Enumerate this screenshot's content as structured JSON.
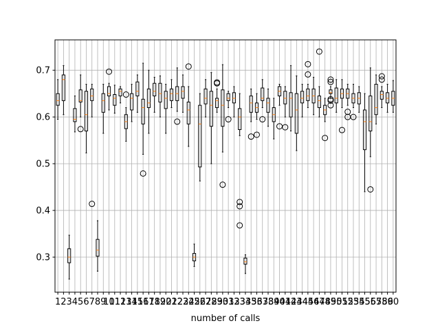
{
  "chart_data": {
    "type": "boxplot",
    "xlabel": "number of calls",
    "ylabel": "",
    "title": "",
    "ylim": [
      0.225,
      0.765
    ],
    "yticks": [
      0.3,
      0.4,
      0.5,
      0.6,
      0.7
    ],
    "ytick_labels": [
      "0.3",
      "0.4",
      "0.5",
      "0.6",
      "0.7"
    ],
    "grid": true,
    "colors": {
      "box": "#000000",
      "median": "#ff7f0e",
      "grid": "#b0b0b0",
      "background": "#ffffff"
    },
    "boxes": [
      {
        "x": 1,
        "q1": 0.625,
        "med": 0.635,
        "q3": 0.65,
        "wlo": 0.595,
        "whi": 0.68,
        "fliers": []
      },
      {
        "x": 2,
        "q1": 0.635,
        "med": 0.68,
        "q3": 0.69,
        "wlo": 0.605,
        "whi": 0.71,
        "fliers": []
      },
      {
        "x": 3,
        "q1": 0.288,
        "med": 0.3,
        "q3": 0.318,
        "wlo": 0.253,
        "whi": 0.347,
        "fliers": []
      },
      {
        "x": 4,
        "q1": 0.59,
        "med": 0.595,
        "q3": 0.618,
        "wlo": 0.568,
        "whi": 0.645,
        "fliers": []
      },
      {
        "x": 5,
        "q1": 0.632,
        "med": 0.635,
        "q3": 0.658,
        "wlo": 0.6,
        "whi": 0.69,
        "fliers": [
          0.574
        ]
      },
      {
        "x": 6,
        "q1": 0.57,
        "med": 0.605,
        "q3": 0.655,
        "wlo": 0.523,
        "whi": 0.67,
        "fliers": []
      },
      {
        "x": 7,
        "q1": 0.635,
        "med": 0.645,
        "q3": 0.66,
        "wlo": 0.6,
        "whi": 0.67,
        "fliers": [
          0.414
        ]
      },
      {
        "x": 8,
        "q1": 0.302,
        "med": 0.315,
        "q3": 0.338,
        "wlo": 0.27,
        "whi": 0.378,
        "fliers": []
      },
      {
        "x": 9,
        "q1": 0.61,
        "med": 0.635,
        "q3": 0.65,
        "wlo": 0.565,
        "whi": 0.67,
        "fliers": []
      },
      {
        "x": 10,
        "q1": 0.645,
        "med": 0.65,
        "q3": 0.665,
        "wlo": 0.615,
        "whi": 0.672,
        "fliers": [
          0.697
        ]
      },
      {
        "x": 11,
        "q1": 0.625,
        "med": 0.64,
        "q3": 0.648,
        "wlo": 0.608,
        "whi": 0.668,
        "fliers": []
      },
      {
        "x": 12,
        "q1": 0.645,
        "med": 0.655,
        "q3": 0.66,
        "wlo": 0.63,
        "whi": 0.665,
        "fliers": []
      },
      {
        "x": 13,
        "q1": 0.575,
        "med": 0.59,
        "q3": 0.605,
        "wlo": 0.548,
        "whi": 0.62,
        "fliers": [
          0.648
        ]
      },
      {
        "x": 14,
        "q1": 0.615,
        "med": 0.64,
        "q3": 0.65,
        "wlo": 0.59,
        "whi": 0.67,
        "fliers": []
      },
      {
        "x": 15,
        "q1": 0.645,
        "med": 0.655,
        "q3": 0.675,
        "wlo": 0.61,
        "whi": 0.69,
        "fliers": []
      },
      {
        "x": 16,
        "q1": 0.585,
        "med": 0.62,
        "q3": 0.638,
        "wlo": 0.52,
        "whi": 0.715,
        "fliers": [
          0.479
        ]
      },
      {
        "x": 17,
        "q1": 0.62,
        "med": 0.63,
        "q3": 0.66,
        "wlo": 0.565,
        "whi": 0.7,
        "fliers": []
      },
      {
        "x": 18,
        "q1": 0.645,
        "med": 0.655,
        "q3": 0.672,
        "wlo": 0.61,
        "whi": 0.685,
        "fliers": []
      },
      {
        "x": 19,
        "q1": 0.632,
        "med": 0.65,
        "q3": 0.672,
        "wlo": 0.6,
        "whi": 0.688,
        "fliers": []
      },
      {
        "x": 20,
        "q1": 0.618,
        "med": 0.64,
        "q3": 0.655,
        "wlo": 0.565,
        "whi": 0.67,
        "fliers": []
      },
      {
        "x": 21,
        "q1": 0.635,
        "med": 0.65,
        "q3": 0.66,
        "wlo": 0.62,
        "whi": 0.68,
        "fliers": []
      },
      {
        "x": 22,
        "q1": 0.635,
        "med": 0.65,
        "q3": 0.665,
        "wlo": 0.612,
        "whi": 0.705,
        "fliers": [
          0.59
        ]
      },
      {
        "x": 23,
        "q1": 0.64,
        "med": 0.655,
        "q3": 0.665,
        "wlo": 0.61,
        "whi": 0.69,
        "fliers": []
      },
      {
        "x": 24,
        "q1": 0.585,
        "med": 0.615,
        "q3": 0.632,
        "wlo": 0.537,
        "whi": 0.665,
        "fliers": [
          0.708
        ]
      },
      {
        "x": 25,
        "q1": 0.292,
        "med": 0.3,
        "q3": 0.308,
        "wlo": 0.28,
        "whi": 0.328,
        "fliers": []
      },
      {
        "x": 26,
        "q1": 0.493,
        "med": 0.585,
        "q3": 0.625,
        "wlo": 0.463,
        "whi": 0.65,
        "fliers": []
      },
      {
        "x": 27,
        "q1": 0.628,
        "med": 0.64,
        "q3": 0.66,
        "wlo": 0.6,
        "whi": 0.68,
        "fliers": []
      },
      {
        "x": 28,
        "q1": 0.58,
        "med": 0.625,
        "q3": 0.655,
        "wlo": 0.5,
        "whi": 0.695,
        "fliers": []
      },
      {
        "x": 29,
        "q1": 0.62,
        "med": 0.635,
        "q3": 0.64,
        "wlo": 0.61,
        "whi": 0.66,
        "fliers": [
          0.672,
          0.674
        ]
      },
      {
        "x": 30,
        "q1": 0.58,
        "med": 0.625,
        "q3": 0.658,
        "wlo": 0.525,
        "whi": 0.712,
        "fliers": [
          0.455
        ]
      },
      {
        "x": 31,
        "q1": 0.635,
        "med": 0.64,
        "q3": 0.65,
        "wlo": 0.62,
        "whi": 0.655,
        "fliers": [
          0.595
        ]
      },
      {
        "x": 32,
        "q1": 0.63,
        "med": 0.64,
        "q3": 0.652,
        "wlo": 0.6,
        "whi": 0.665,
        "fliers": []
      },
      {
        "x": 33,
        "q1": 0.573,
        "med": 0.6,
        "q3": 0.618,
        "wlo": 0.56,
        "whi": 0.65,
        "fliers": [
          0.418,
          0.409,
          0.368
        ]
      },
      {
        "x": 34,
        "q1": 0.285,
        "med": 0.29,
        "q3": 0.298,
        "wlo": 0.265,
        "whi": 0.305,
        "fliers": []
      },
      {
        "x": 35,
        "q1": 0.61,
        "med": 0.63,
        "q3": 0.645,
        "wlo": 0.59,
        "whi": 0.66,
        "fliers": [
          0.558
        ]
      },
      {
        "x": 36,
        "q1": 0.61,
        "med": 0.62,
        "q3": 0.63,
        "wlo": 0.595,
        "whi": 0.65,
        "fliers": [
          0.562
        ]
      },
      {
        "x": 37,
        "q1": 0.635,
        "med": 0.64,
        "q3": 0.662,
        "wlo": 0.62,
        "whi": 0.68,
        "fliers": [
          0.595
        ]
      },
      {
        "x": 38,
        "q1": 0.61,
        "med": 0.63,
        "q3": 0.64,
        "wlo": 0.58,
        "whi": 0.66,
        "fliers": []
      },
      {
        "x": 39,
        "q1": 0.59,
        "med": 0.605,
        "q3": 0.62,
        "wlo": 0.553,
        "whi": 0.64,
        "fliers": []
      },
      {
        "x": 40,
        "q1": 0.645,
        "med": 0.655,
        "q3": 0.665,
        "wlo": 0.625,
        "whi": 0.67,
        "fliers": [
          0.58
        ]
      },
      {
        "x": 41,
        "q1": 0.628,
        "med": 0.64,
        "q3": 0.655,
        "wlo": 0.6,
        "whi": 0.665,
        "fliers": [
          0.578
        ]
      },
      {
        "x": 42,
        "q1": 0.6,
        "med": 0.64,
        "q3": 0.652,
        "wlo": 0.57,
        "whi": 0.71,
        "fliers": []
      },
      {
        "x": 43,
        "q1": 0.565,
        "med": 0.615,
        "q3": 0.65,
        "wlo": 0.528,
        "whi": 0.688,
        "fliers": []
      },
      {
        "x": 44,
        "q1": 0.63,
        "med": 0.64,
        "q3": 0.655,
        "wlo": 0.6,
        "whi": 0.67,
        "fliers": []
      },
      {
        "x": 45,
        "q1": 0.635,
        "med": 0.645,
        "q3": 0.66,
        "wlo": 0.62,
        "whi": 0.67,
        "fliers": [
          0.713,
          0.691
        ]
      },
      {
        "x": 46,
        "q1": 0.63,
        "med": 0.645,
        "q3": 0.66,
        "wlo": 0.605,
        "whi": 0.685,
        "fliers": []
      },
      {
        "x": 47,
        "q1": 0.62,
        "med": 0.635,
        "q3": 0.645,
        "wlo": 0.6,
        "whi": 0.665,
        "fliers": [
          0.74
        ]
      },
      {
        "x": 48,
        "q1": 0.605,
        "med": 0.615,
        "q3": 0.625,
        "wlo": 0.59,
        "whi": 0.64,
        "fliers": [
          0.555
        ]
      },
      {
        "x": 49,
        "q1": 0.65,
        "med": 0.652,
        "q3": 0.658,
        "wlo": 0.64,
        "whi": 0.665,
        "fliers": [
          0.68,
          0.675,
          0.638,
          0.635,
          0.625
        ]
      },
      {
        "x": 50,
        "q1": 0.63,
        "med": 0.64,
        "q3": 0.662,
        "wlo": 0.61,
        "whi": 0.68,
        "fliers": []
      },
      {
        "x": 51,
        "q1": 0.64,
        "med": 0.65,
        "q3": 0.66,
        "wlo": 0.62,
        "whi": 0.68,
        "fliers": [
          0.572
        ]
      },
      {
        "x": 52,
        "q1": 0.64,
        "med": 0.65,
        "q3": 0.66,
        "wlo": 0.625,
        "whi": 0.67,
        "fliers": [
          0.611,
          0.6
        ]
      },
      {
        "x": 53,
        "q1": 0.63,
        "med": 0.64,
        "q3": 0.65,
        "wlo": 0.62,
        "whi": 0.67,
        "fliers": [
          0.6
        ]
      },
      {
        "x": 54,
        "q1": 0.628,
        "med": 0.64,
        "q3": 0.652,
        "wlo": 0.61,
        "whi": 0.665,
        "fliers": []
      },
      {
        "x": 55,
        "q1": 0.53,
        "med": 0.59,
        "q3": 0.615,
        "wlo": 0.44,
        "whi": 0.65,
        "fliers": []
      },
      {
        "x": 56,
        "q1": 0.57,
        "med": 0.59,
        "q3": 0.645,
        "wlo": 0.515,
        "whi": 0.705,
        "fliers": [
          0.445
        ]
      },
      {
        "x": 57,
        "q1": 0.605,
        "med": 0.62,
        "q3": 0.67,
        "wlo": 0.585,
        "whi": 0.69,
        "fliers": []
      },
      {
        "x": 58,
        "q1": 0.638,
        "med": 0.648,
        "q3": 0.655,
        "wlo": 0.62,
        "whi": 0.665,
        "fliers": [
          0.687,
          0.68
        ]
      },
      {
        "x": 59,
        "q1": 0.63,
        "med": 0.64,
        "q3": 0.652,
        "wlo": 0.61,
        "whi": 0.67,
        "fliers": []
      },
      {
        "x": 60,
        "q1": 0.625,
        "med": 0.64,
        "q3": 0.655,
        "wlo": 0.61,
        "whi": 0.678,
        "fliers": []
      }
    ],
    "xtick_labels": [
      "1",
      "2",
      "3",
      "4",
      "5",
      "6",
      "7",
      "8",
      "9",
      "10",
      "11",
      "12",
      "13",
      "14",
      "15",
      "16",
      "17",
      "18",
      "19",
      "20",
      "21",
      "22",
      "23",
      "24",
      "25",
      "26",
      "27",
      "28",
      "29",
      "30",
      "31",
      "32",
      "33",
      "34",
      "35",
      "36",
      "37",
      "38",
      "39",
      "40",
      "41",
      "42",
      "43",
      "44",
      "45",
      "46",
      "47",
      "48",
      "49",
      "50",
      "51",
      "52",
      "53",
      "54",
      "55",
      "56",
      "57",
      "58",
      "59",
      "60"
    ]
  }
}
